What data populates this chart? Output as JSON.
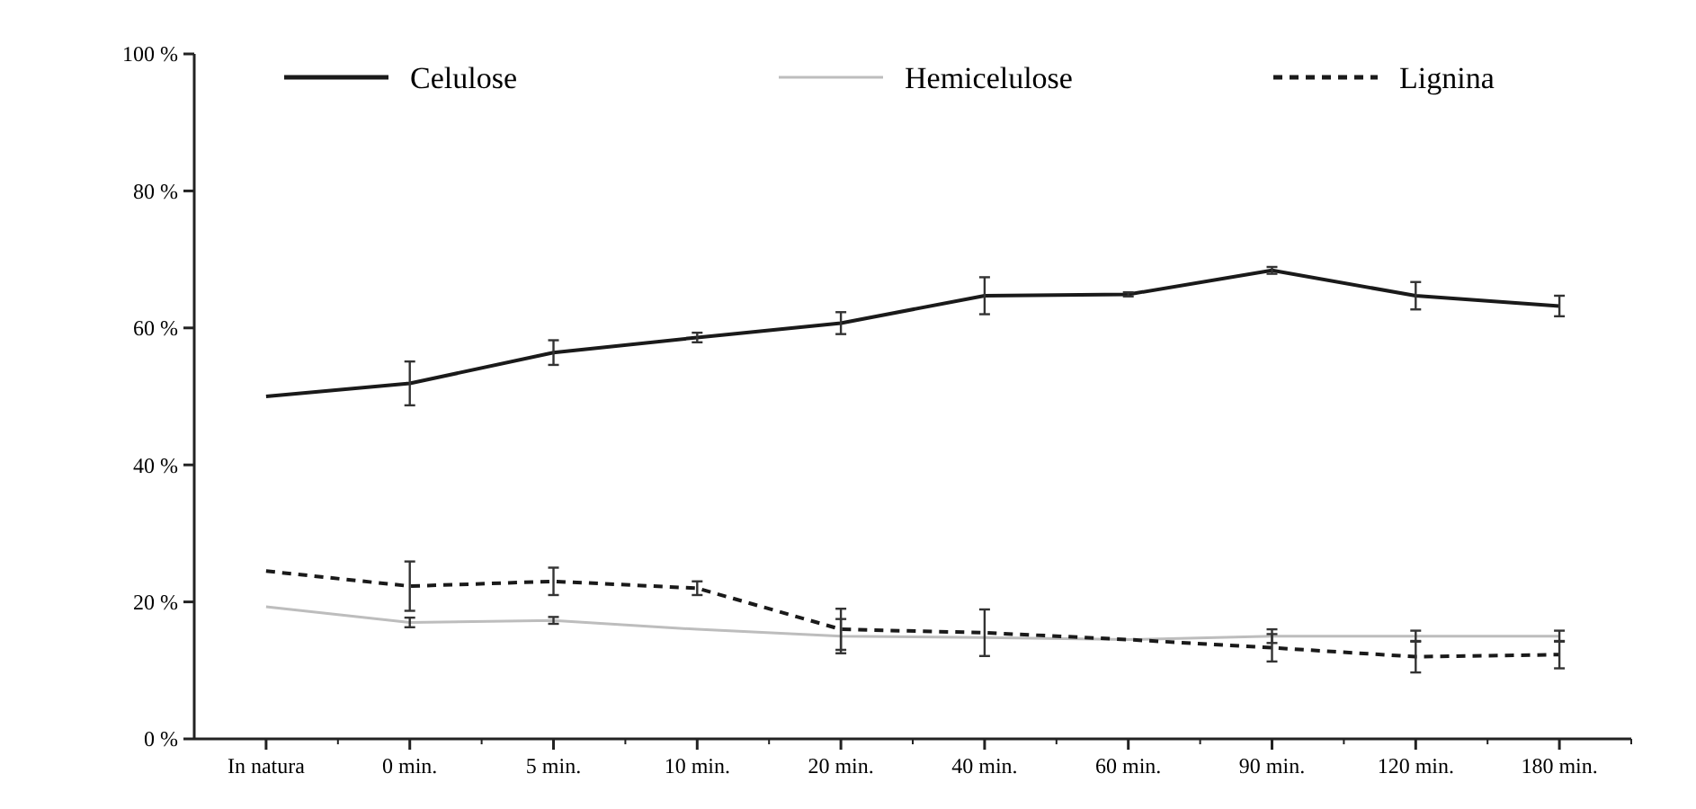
{
  "chart_data": {
    "type": "line",
    "categories": [
      "In natura",
      "0 min.",
      "5 min.",
      "10 min.",
      "20 min.",
      "40 min.",
      "60 min.",
      "90 min.",
      "120 min.",
      "180 min."
    ],
    "series": [
      {
        "name": "Celulose",
        "color": "#1a1a1a",
        "line_style": "solid",
        "values": [
          50,
          51.9,
          56.4,
          58.6,
          60.7,
          64.7,
          64.9,
          68.4,
          64.7,
          63.2
        ],
        "errors": [
          null,
          3.2,
          1.8,
          0.7,
          1.6,
          2.7,
          0.3,
          0.5,
          2,
          1.5
        ]
      },
      {
        "name": "Hemicelulose",
        "color": "#bdbdbd",
        "line_style": "solid",
        "values": [
          19.3,
          17,
          17.3,
          16,
          15,
          14.8,
          14.5,
          15,
          15,
          15
        ],
        "errors": [
          null,
          0.7,
          0.5,
          null,
          2.5,
          null,
          null,
          1,
          0.8,
          0.8
        ]
      },
      {
        "name": "Lignina",
        "color": "#1a1a1a",
        "line_style": "dashed",
        "values": [
          24.5,
          22.3,
          23,
          22,
          16,
          15.5,
          14.5,
          13.3,
          12,
          12.3
        ],
        "errors": [
          null,
          3.6,
          2,
          1,
          3,
          3.4,
          null,
          2,
          2.3,
          2
        ]
      }
    ],
    "ylim": [
      0,
      100
    ],
    "yticks": [
      {
        "value": 0,
        "label": "0 %"
      },
      {
        "value": 20,
        "label": "20 %"
      },
      {
        "value": 40,
        "label": "40 %"
      },
      {
        "value": 60,
        "label": "60 %"
      },
      {
        "value": 80,
        "label": "80 %"
      },
      {
        "value": 100,
        "label": "100 %"
      }
    ],
    "grid": false,
    "legend": "top",
    "marker": "none"
  }
}
